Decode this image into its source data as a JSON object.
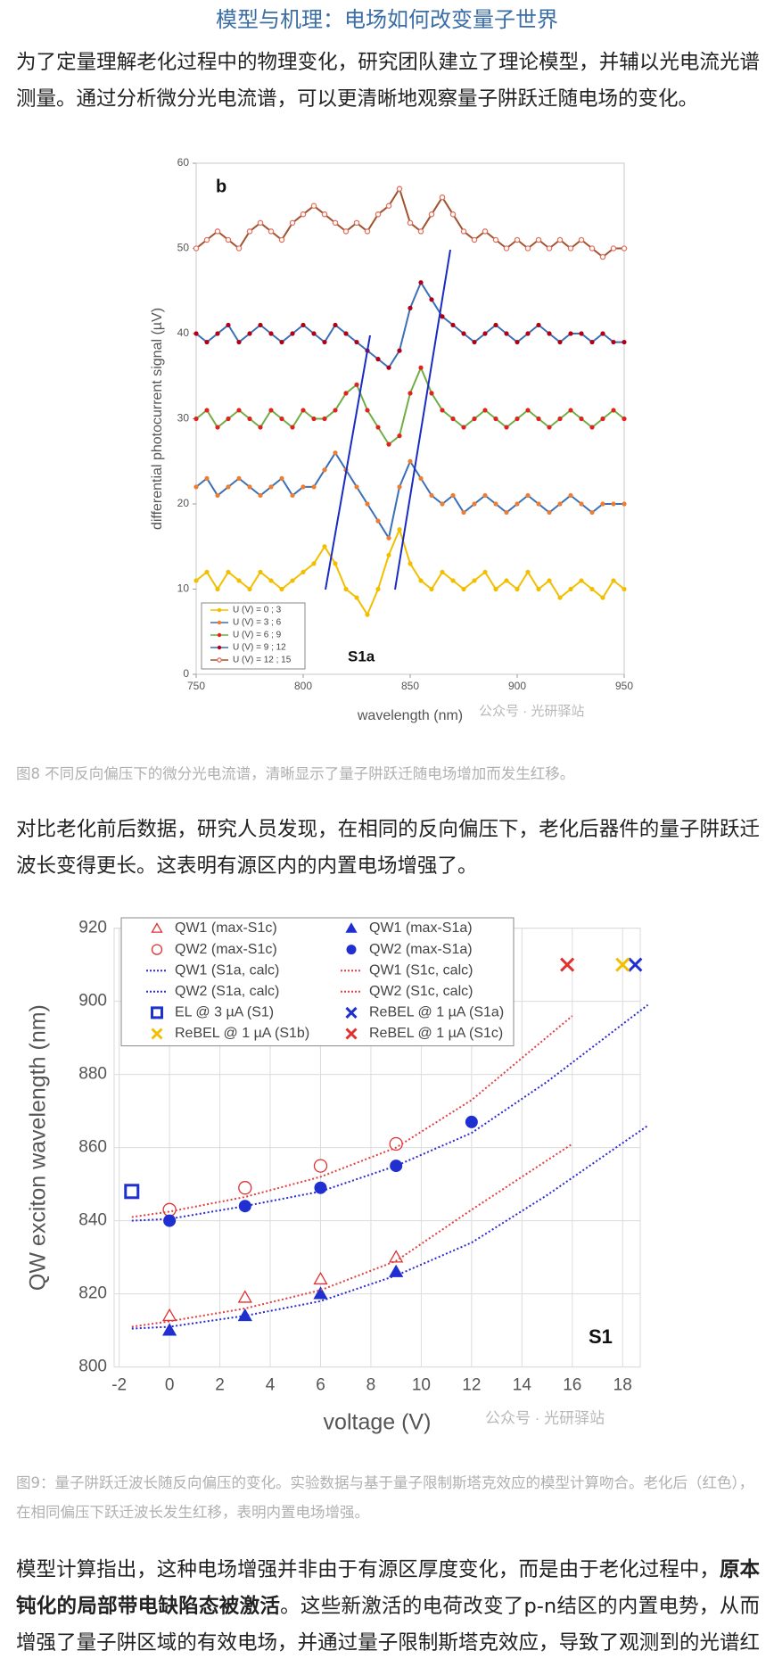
{
  "title": "模型与机理：电场如何改变量子世界",
  "paragraphs": [
    "为了定量理解老化过程中的物理变化，研究团队建立了理论模型，并辅以光电流光谱测量。通过分析微分光电流谱，可以更清晰地观察量子阱跃迁随电场的变化。",
    "对比老化前后数据，研究人员发现，在相同的反向偏压下，老化后器件的量子阱跃迁波长变得更长。这表明有源区内的内置电场增强了。",
    [
      "模型计算指出，这种电场增强并非由于有源区厚度变化，而是由于老化过程中，",
      "原本钝化的局部带电缺陷态被激活",
      "。这些新激活的电荷改变了p-n结区的内置电势，从而增强了量子阱区域的有效电场，并通过量子限制斯塔克效应，导致了观测到的光谱红移。"
    ]
  ],
  "captions": [
    "图8 不同反向偏压下的微分光电流谱，清晰显示了量子阱跃迁随电场增加而发生红移。",
    "图9：量子阱跃迁波长随反向偏压的变化。实验数据与基于量子限制斯塔克效应的模型计算吻合。老化后（红色），在相同偏压下跃迁波长发生红移，表明内置电场增强。"
  ],
  "chart_data": [
    {
      "type": "line",
      "panel_label": "b",
      "annotation": "S1a",
      "watermark": "公众号 · 光研驿站",
      "x_label": "wavelength (nm)",
      "y_label": "differential photocurrent signal (µV)",
      "xlim": [
        750,
        950
      ],
      "xticks": [
        750,
        800,
        850,
        900,
        950
      ],
      "ylim": [
        0,
        60
      ],
      "yticks": [
        0,
        10,
        20,
        30,
        40,
        50,
        60
      ],
      "grid": false,
      "legend": "lower left",
      "x": [
        750,
        755,
        760,
        765,
        770,
        775,
        780,
        785,
        790,
        795,
        800,
        805,
        810,
        815,
        820,
        825,
        830,
        835,
        840,
        845,
        850,
        855,
        860,
        865,
        870,
        875,
        880,
        885,
        890,
        895,
        900,
        905,
        910,
        915,
        920,
        925,
        930,
        935,
        940,
        945,
        950
      ],
      "series": [
        {
          "name": "U (V) = 0 ; 3",
          "color": "#f2bf00",
          "marker_color": "#f2bf00",
          "marker": "circle",
          "values": [
            11,
            12,
            10,
            12,
            11,
            10,
            12,
            11,
            10,
            11,
            12,
            13,
            15,
            13,
            10,
            9,
            7,
            10,
            14,
            17,
            13,
            11,
            10,
            12,
            11,
            10,
            11,
            12,
            10,
            11,
            10,
            12,
            10,
            11,
            9,
            10,
            11,
            10,
            9,
            11,
            10
          ]
        },
        {
          "name": "U (V) = 3 ; 6",
          "color": "#3b6fb6",
          "marker_color": "#ed7d31",
          "marker": "circle",
          "values": [
            22,
            23,
            21,
            22,
            23,
            22,
            21,
            22,
            23,
            21,
            22,
            22,
            24,
            26,
            24,
            22,
            20,
            18,
            16,
            22,
            25,
            23,
            21,
            20,
            21,
            19,
            20,
            21,
            20,
            19,
            20,
            21,
            20,
            19,
            20,
            21,
            20,
            19,
            20,
            20,
            20
          ]
        },
        {
          "name": "U (V) = 6 ; 9",
          "color": "#70ad47",
          "marker_color": "#e0231b",
          "marker": "circle",
          "values": [
            30,
            31,
            29,
            30,
            31,
            30,
            29,
            31,
            30,
            29,
            31,
            30,
            30,
            31,
            33,
            34,
            31,
            29,
            27,
            28,
            33,
            36,
            33,
            31,
            30,
            29,
            30,
            31,
            30,
            29,
            30,
            31,
            30,
            29,
            30,
            31,
            30,
            29,
            30,
            31,
            30
          ]
        },
        {
          "name": "U (V) = 9 ; 12",
          "color": "#3b6fb6",
          "marker_color": "#b00018",
          "marker": "circle",
          "values": [
            40,
            39,
            40,
            41,
            39,
            40,
            41,
            40,
            39,
            40,
            41,
            40,
            39,
            41,
            40,
            39,
            38,
            37,
            36,
            38,
            43,
            46,
            44,
            42,
            41,
            40,
            39,
            40,
            41,
            40,
            39,
            40,
            41,
            40,
            39,
            40,
            40,
            39,
            40,
            39,
            39
          ]
        },
        {
          "name": "U (V) = 12 ; 15",
          "color": "#a0522d",
          "marker_color": "#e07060",
          "marker": "circle-open",
          "values": [
            50,
            51,
            52,
            51,
            50,
            52,
            53,
            52,
            51,
            53,
            54,
            55,
            54,
            53,
            52,
            53,
            52,
            54,
            55,
            57,
            53,
            52,
            54,
            56,
            54,
            52,
            51,
            52,
            51,
            50,
            51,
            50,
            51,
            50,
            51,
            50,
            51,
            50,
            49,
            50,
            50
          ]
        }
      ]
    },
    {
      "type": "scatter",
      "annotation": "S1",
      "watermark": "公众号 · 光研驿站",
      "x_label": "voltage (V)",
      "y_label": "QW exciton wavelength (nm)",
      "xlim": [
        -2.2,
        18.7
      ],
      "xticks": [
        -2,
        0,
        2,
        4,
        6,
        8,
        10,
        12,
        14,
        16,
        18
      ],
      "ylim": [
        800,
        920
      ],
      "yticks": [
        800,
        820,
        840,
        860,
        880,
        900,
        920
      ],
      "grid": true,
      "legend": "upper left",
      "series": [
        {
          "name": "QW1 (max-S1c)",
          "color": "#e03030",
          "marker": "triangle-open",
          "line": "none",
          "x": [
            0,
            3,
            6,
            9
          ],
          "values": [
            814,
            819,
            824,
            830
          ]
        },
        {
          "name": "QW1 (max-S1a)",
          "color": "#1f2fd0",
          "marker": "triangle",
          "line": "none",
          "x": [
            0,
            3,
            6,
            9
          ],
          "values": [
            810,
            814,
            820,
            826
          ]
        },
        {
          "name": "QW2 (max-S1c)",
          "color": "#e03030",
          "marker": "circle-open",
          "line": "none",
          "x": [
            0,
            3,
            6,
            9
          ],
          "values": [
            843,
            849,
            855,
            861
          ]
        },
        {
          "name": "QW2 (max-S1a)",
          "color": "#1f2fd0",
          "marker": "circle",
          "line": "none",
          "x": [
            0,
            3,
            6,
            9,
            12
          ],
          "values": [
            840,
            844,
            849,
            855,
            867
          ]
        },
        {
          "name": "QW1 (S1a, calc)",
          "color": "#2a2ad0",
          "marker": "none",
          "line": "dotted",
          "x": [
            -1.5,
            0,
            3,
            6,
            9,
            12,
            15,
            19
          ],
          "values": [
            810.5,
            811,
            814,
            818,
            825,
            834,
            847,
            866
          ]
        },
        {
          "name": "QW1 (S1c, calc)",
          "color": "#e04040",
          "marker": "none",
          "line": "dotted",
          "x": [
            -1.5,
            0,
            3,
            6,
            9,
            12,
            16
          ],
          "values": [
            811,
            812.5,
            816,
            821,
            829,
            843,
            861
          ]
        },
        {
          "name": "QW2 (S1a, calc)",
          "color": "#2a2ad0",
          "marker": "none",
          "line": "dotted",
          "x": [
            -1.5,
            0,
            3,
            6,
            9,
            12,
            15,
            19
          ],
          "values": [
            840,
            840.5,
            844,
            848,
            855,
            864,
            878,
            899
          ]
        },
        {
          "name": "QW2 (S1c, calc)",
          "color": "#e04040",
          "marker": "none",
          "line": "dotted",
          "x": [
            -1.5,
            0,
            3,
            6,
            9,
            12,
            16
          ],
          "values": [
            841,
            842.5,
            846.5,
            852,
            860,
            873,
            896
          ]
        },
        {
          "name": "EL @ 3 µA (S1)",
          "color": "#1f2fd0",
          "marker": "square-open",
          "line": "none",
          "x": [
            -1.5
          ],
          "values": [
            848
          ]
        },
        {
          "name": "ReBEL @ 1 µA (S1a)",
          "color": "#1f2fd0",
          "marker": "x",
          "line": "none",
          "x": [
            18.5
          ],
          "values": [
            910
          ]
        },
        {
          "name": "ReBEL @ 1 µA (S1b)",
          "color": "#f2bf00",
          "marker": "x",
          "line": "none",
          "x": [
            18
          ],
          "values": [
            910
          ]
        },
        {
          "name": "ReBEL @ 1 µA (S1c)",
          "color": "#e03030",
          "marker": "x",
          "line": "none",
          "x": [
            15.8
          ],
          "values": [
            910
          ]
        }
      ]
    }
  ]
}
